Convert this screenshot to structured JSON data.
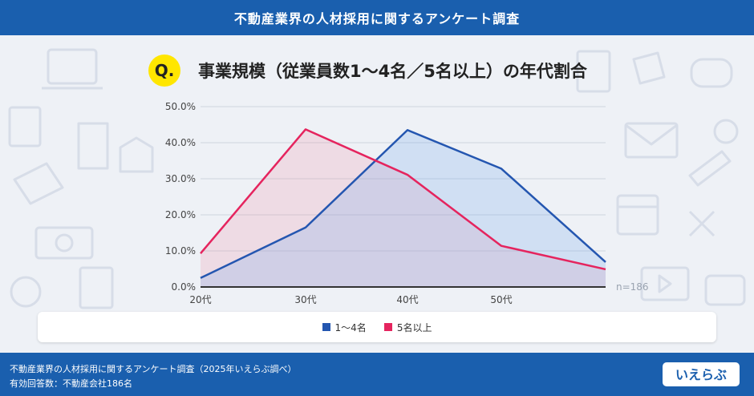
{
  "header": {
    "title": "不動産業界の人材採用に関するアンケート調査"
  },
  "question": {
    "badge": "Q.",
    "text": "事業規模（従業員数1～4名／5名以上）の年代割合"
  },
  "sample_note": "n=186",
  "footer": {
    "line1": "不動産業界の人材採用に関するアンケート調査（2025年いえらぶ調べ）",
    "line2": "有効回答数：不動産会社186名"
  },
  "logo": {
    "text": "いえらぶ"
  },
  "colors": {
    "primary": "#1a5fae",
    "series1": "#2456b0",
    "series2": "#e5245e",
    "badge": "#ffe600"
  },
  "chart_data": {
    "type": "area",
    "categories": [
      "20代",
      "30代",
      "40代",
      "50代",
      ""
    ],
    "y_ticks": [
      "50.0%",
      "40.0%",
      "30.0%",
      "20.0%",
      "10.0%",
      "0.0%"
    ],
    "ylim": [
      0,
      50
    ],
    "series": [
      {
        "name": "1～4名",
        "values": [
          2.5,
          16.5,
          43.5,
          32.8,
          6.9
        ]
      },
      {
        "name": "5名以上",
        "values": [
          9.3,
          43.7,
          31.1,
          11.4,
          4.9
        ]
      }
    ],
    "legend_position": "bottom",
    "grid": true
  }
}
